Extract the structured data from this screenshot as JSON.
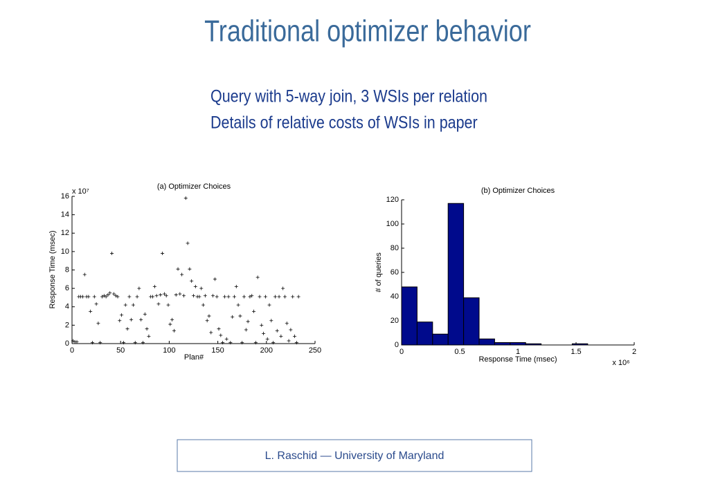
{
  "header": {
    "title": "Traditional optimizer behavior"
  },
  "subtitle": [
    "Query with 5-way join, 3 WSIs per relation",
    "Details of relative costs of WSIs in paper"
  ],
  "footer": {
    "text": "L. Raschid — University of Maryland"
  },
  "chart_data": [
    {
      "type": "scatter",
      "title": "(a) Optimizer Choices",
      "x_label": "Plan#",
      "y_label": "Response Time (msec)",
      "y_multiplier": "x 10⁷",
      "xlim": [
        0,
        250
      ],
      "xticks": [
        0,
        50,
        100,
        150,
        200,
        250
      ],
      "ylim": [
        0,
        16
      ],
      "yticks": [
        0,
        2,
        4,
        6,
        8,
        10,
        12,
        14,
        16
      ],
      "color": "#000000",
      "x": [
        1,
        3,
        5,
        7,
        9,
        11,
        13,
        15,
        17,
        19,
        21,
        23,
        25,
        27,
        29,
        31,
        33,
        35,
        37,
        39,
        41,
        43,
        45,
        47,
        49,
        51,
        53,
        55,
        57,
        59,
        61,
        63,
        65,
        67,
        69,
        71,
        73,
        75,
        77,
        79,
        81,
        83,
        85,
        87,
        89,
        91,
        93,
        95,
        97,
        99,
        101,
        103,
        105,
        107,
        109,
        111,
        113,
        115,
        117,
        119,
        121,
        123,
        125,
        127,
        129,
        131,
        133,
        135,
        137,
        139,
        141,
        143,
        145,
        147,
        149,
        151,
        153,
        155,
        157,
        159,
        161,
        163,
        165,
        167,
        169,
        171,
        173,
        175,
        177,
        179,
        181,
        183,
        185,
        187,
        189,
        191,
        193,
        195,
        197,
        199,
        201,
        203,
        205,
        207,
        209,
        211,
        213,
        215,
        217,
        219,
        221,
        223,
        225,
        227,
        229,
        231,
        233
      ],
      "values": [
        0.3,
        0.2,
        0.2,
        5.1,
        5.1,
        5.1,
        7.5,
        5.1,
        5.1,
        3.5,
        0.1,
        5.1,
        4.3,
        2.2,
        0.1,
        5.1,
        5.2,
        5.1,
        5.3,
        5.5,
        9.8,
        5.4,
        5.2,
        5.1,
        2.5,
        3.1,
        0.1,
        4.2,
        1.6,
        5.1,
        2.6,
        4.2,
        0.1,
        5.1,
        6.0,
        2.6,
        0.1,
        3.2,
        1.6,
        0.8,
        5.1,
        5.1,
        6.2,
        5.2,
        4.3,
        5.3,
        9.8,
        5.4,
        5.2,
        4.2,
        2.1,
        2.6,
        1.4,
        5.3,
        8.1,
        5.4,
        7.5,
        5.2,
        15.8,
        10.9,
        8.1,
        6.8,
        5.2,
        6.2,
        5.1,
        5.1,
        6.0,
        4.2,
        5.2,
        2.5,
        3.0,
        1.2,
        5.2,
        7.0,
        5.1,
        1.6,
        0.9,
        0.1,
        5.1,
        0.5,
        5.1,
        0.1,
        2.9,
        5.1,
        6.2,
        4.2,
        3.0,
        0.1,
        5.1,
        1.5,
        2.4,
        5.1,
        5.2,
        3.5,
        0.1,
        7.2,
        5.1,
        2.0,
        1.1,
        5.1,
        0.5,
        4.2,
        2.5,
        0.1,
        5.1,
        1.4,
        5.1,
        0.8,
        6.0,
        5.1,
        2.2,
        0.3,
        1.5,
        5.1,
        0.8,
        0.1,
        5.1
      ]
    },
    {
      "type": "histogram",
      "title": "(b) Optimizer Choices",
      "x_label": "Response Time (msec)",
      "y_label": "# of queries",
      "x_multiplier": "x 10⁶",
      "xlim": [
        0,
        2
      ],
      "xticks": [
        0,
        0.5,
        1,
        1.5,
        2
      ],
      "ylim": [
        0,
        120
      ],
      "yticks": [
        0,
        20,
        40,
        60,
        80,
        100,
        120
      ],
      "color": "#000a8c",
      "bins": [
        0,
        0.1333,
        0.2667,
        0.4,
        0.5333,
        0.6667,
        0.8,
        0.9333,
        1.0667,
        1.2,
        1.3333,
        1.4667,
        1.6,
        1.7333,
        1.8667,
        2
      ],
      "values": [
        48,
        19,
        9,
        117,
        39,
        5,
        2,
        2,
        1,
        0,
        0,
        1,
        0,
        0,
        0
      ]
    }
  ]
}
